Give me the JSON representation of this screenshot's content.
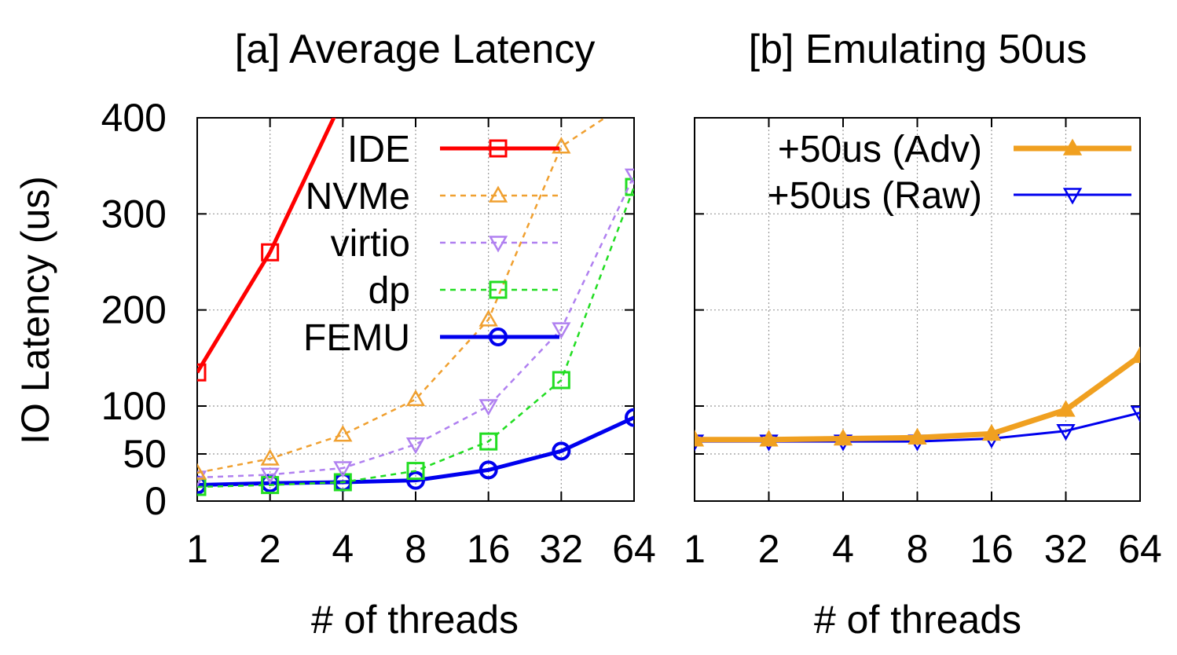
{
  "chart_data": [
    {
      "type": "line",
      "title": "[a] Average Latency",
      "xlabel": "# of threads",
      "ylabel": "IO Latency (us)",
      "categories": [
        "1",
        "2",
        "4",
        "8",
        "16",
        "32",
        "64"
      ],
      "yticks": [
        "0",
        "50",
        "100",
        "200",
        "300",
        "400"
      ],
      "ylim": [
        0,
        400
      ],
      "y_scale": "piecewise (0-100 expanded)",
      "grid": true,
      "legend_position": "top-right",
      "series": [
        {
          "name": "IDE",
          "color": "#ff0000",
          "marker": "square",
          "dashed": false,
          "width": 5,
          "values": [
            135,
            260,
            420,
            null,
            null,
            null,
            null
          ]
        },
        {
          "name": "NVMe",
          "color": "#f0a030",
          "marker": "triangle-up",
          "dashed": true,
          "width": 2.5,
          "values": [
            30,
            45,
            70,
            107,
            190,
            370,
            420
          ]
        },
        {
          "name": "virtio",
          "color": "#b080f0",
          "marker": "triangle-down",
          "dashed": true,
          "width": 2.5,
          "values": [
            25,
            28,
            35,
            60,
            100,
            180,
            340
          ]
        },
        {
          "name": "dp",
          "color": "#22dd22",
          "marker": "square",
          "dashed": true,
          "width": 2.5,
          "values": [
            15,
            17,
            20,
            32,
            63,
            127,
            328
          ]
        },
        {
          "name": "FEMU",
          "color": "#0000ee",
          "marker": "circle",
          "dashed": false,
          "width": 5,
          "values": [
            17,
            19,
            20,
            22,
            33,
            53,
            88
          ]
        }
      ]
    },
    {
      "type": "line",
      "title": "[b] Emulating 50us",
      "xlabel": "# of threads",
      "categories": [
        "1",
        "2",
        "4",
        "8",
        "16",
        "32",
        "64"
      ],
      "ylim": [
        0,
        400
      ],
      "grid": true,
      "legend_position": "top-right",
      "series": [
        {
          "name": "+50us (Adv)",
          "color": "#f0a020",
          "marker": "triangle-up-filled",
          "dashed": false,
          "width": 7,
          "values": [
            65,
            65,
            66,
            67,
            71,
            96,
            152
          ]
        },
        {
          "name": "+50us (Raw)",
          "color": "#0000ee",
          "marker": "triangle-down",
          "dashed": false,
          "width": 3,
          "values": [
            63,
            63,
            63,
            63,
            66,
            74,
            93
          ]
        }
      ]
    }
  ]
}
